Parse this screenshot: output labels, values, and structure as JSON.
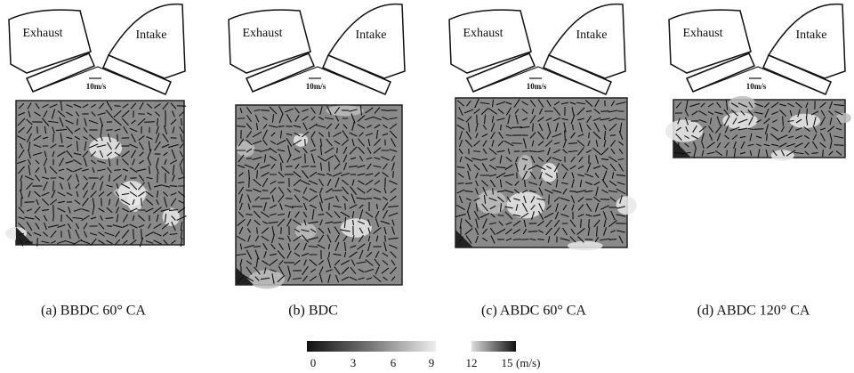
{
  "panels": [
    {
      "exhaust": "Exhaust",
      "intake": "Intake",
      "scale": "10m/s",
      "caption": "(a)  BBDC 60° CA"
    },
    {
      "exhaust": "Exhaust",
      "intake": "Intake",
      "scale": "10m/s",
      "caption": "(b)  BDC"
    },
    {
      "exhaust": "Exhaust",
      "intake": "Intake",
      "scale": "10m/s",
      "caption": "(c)  ABDC 60° CA"
    },
    {
      "exhaust": "Exhaust",
      "intake": "Intake",
      "scale": "10m/s",
      "caption": "(d)  ABDC 120° CA"
    }
  ],
  "colorbar": {
    "ticks": [
      0,
      3,
      6,
      9,
      12,
      15
    ],
    "unit": "(m/s)"
  }
}
